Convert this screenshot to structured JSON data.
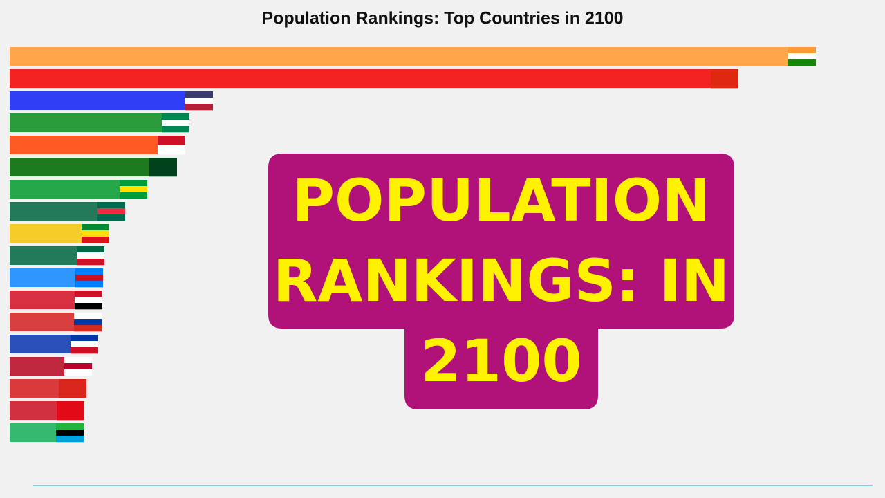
{
  "chart_data": {
    "type": "hbar",
    "title": "Population Rankings: Top Countries in 2100",
    "categories": [
      null,
      null,
      null,
      null,
      null,
      null,
      null,
      null,
      null,
      null,
      null,
      null,
      null,
      null,
      null,
      null,
      null,
      null
    ],
    "values": [
      1166,
      1054,
      294,
      260,
      254,
      242,
      199,
      167,
      144,
      137,
      135,
      134,
      133,
      128,
      119,
      111,
      108,
      107
    ],
    "colors": [
      "#ffa54a",
      "#f52222",
      "#2f3ff5",
      "#2b9a3a",
      "#ff5a23",
      "#1e7a1e",
      "#25a84a",
      "#237a5a",
      "#f6cc2a",
      "#237a5a",
      "#2f95ff",
      "#d83040",
      "#d84040",
      "#2850b8",
      "#c02840",
      "#da3a3a",
      "#d03040",
      "#35b870"
    ],
    "flag_colors": [
      [
        "#ff9933",
        "#ffffff",
        "#138808"
      ],
      [
        "#de2910"
      ],
      [
        "#3c3b6e",
        "#ffffff",
        "#b22234"
      ],
      [
        "#008751",
        "#ffffff",
        "#008751"
      ],
      [
        "#ce1126",
        "#ffffff"
      ],
      [
        "#01411c"
      ],
      [
        "#009c3b",
        "#ffdf00",
        "#009c3b"
      ],
      [
        "#006a4e",
        "#f42a41",
        "#006a4e"
      ],
      [
        "#078930",
        "#fcdd09",
        "#da121a"
      ],
      [
        "#006847",
        "#ffffff",
        "#ce1126"
      ],
      [
        "#007fff",
        "#ce1021",
        "#007fff"
      ],
      [
        "#ce1126",
        "#ffffff",
        "#000000"
      ],
      [
        "#ffffff",
        "#0039a6",
        "#d52b1e"
      ],
      [
        "#0038a8",
        "#ffffff",
        "#ce1126"
      ],
      [
        "#ffffff",
        "#bc002d",
        "#ffffff"
      ],
      [
        "#da251d"
      ],
      [
        "#e30a17"
      ],
      [
        "#1eb53a",
        "#000000",
        "#00a3dd"
      ]
    ],
    "overlay": {
      "lines": [
        "POPULATION",
        "RANKINGS:  IN",
        "2100"
      ],
      "color": "#b0127a",
      "text_color": "#fff200"
    }
  }
}
